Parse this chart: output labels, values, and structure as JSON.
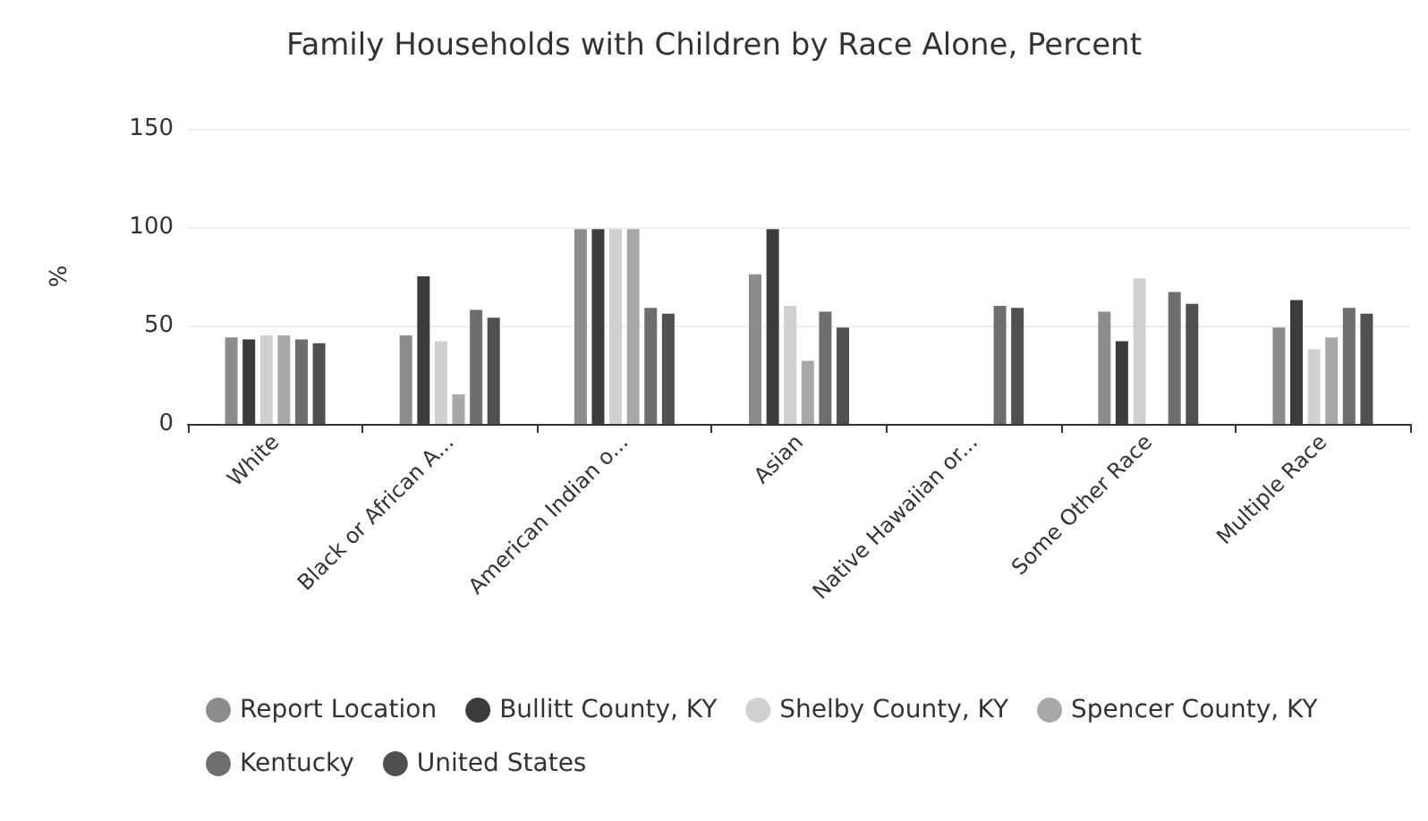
{
  "chart_data": {
    "type": "bar",
    "title": "Family Households with Children by Race Alone, Percent",
    "ylabel": "%",
    "categories": [
      "White",
      "Black or African A...",
      "American Indian o...",
      "Asian",
      "Native Hawaiian or...",
      "Some Other Race",
      "Multiple Race"
    ],
    "series": [
      {
        "name": "Report Location",
        "color": "#8c8c8c",
        "values": [
          44,
          45,
          99,
          76,
          null,
          57,
          49
        ]
      },
      {
        "name": "Bullitt County, KY",
        "color": "#3c3c3c",
        "values": [
          43,
          75,
          99,
          99,
          null,
          42,
          63
        ]
      },
      {
        "name": "Shelby County, KY",
        "color": "#d0d0d0",
        "values": [
          45,
          42,
          99,
          60,
          null,
          74,
          38
        ]
      },
      {
        "name": "Spencer County, KY",
        "color": "#a8a8a8",
        "values": [
          45,
          15,
          99,
          32,
          null,
          null,
          44
        ]
      },
      {
        "name": "Kentucky",
        "color": "#6e6e6e",
        "values": [
          43,
          58,
          59,
          57,
          60,
          67,
          59
        ]
      },
      {
        "name": "United States",
        "color": "#505050",
        "values": [
          41,
          54,
          56,
          49,
          59,
          61,
          56
        ]
      }
    ],
    "ylim": [
      0,
      150
    ],
    "yticks": [
      0,
      50,
      100,
      150
    ],
    "grid": "y",
    "legend": "bottom"
  }
}
